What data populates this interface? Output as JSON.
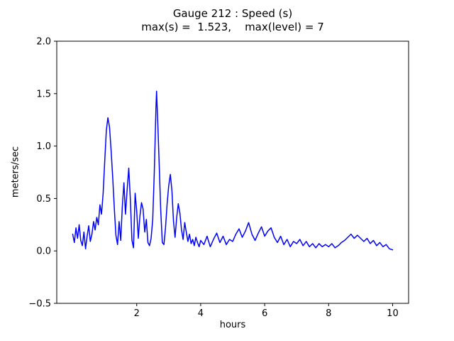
{
  "figure": {
    "background": "#ffffff",
    "axes_color": "#000000"
  },
  "chart_data": {
    "type": "line",
    "title": "Gauge 212 : Speed (s)",
    "subtitle": "max(s) =  1.523,    max(level) = 7",
    "max_s": 1.523,
    "max_level": 7,
    "xlabel": "hours",
    "ylabel": "meters/sec",
    "xlim": [
      -0.5,
      10.5
    ],
    "ylim": [
      -0.5,
      2.0
    ],
    "xticks": [
      2,
      4,
      6,
      8,
      10
    ],
    "xtick_labels": [
      "2",
      "4",
      "6",
      "8",
      "10"
    ],
    "yticks": [
      -0.5,
      0.0,
      0.5,
      1.0,
      1.5,
      2.0
    ],
    "ytick_labels": [
      "−0.5",
      "0.0",
      "0.5",
      "1.0",
      "1.5",
      "2.0"
    ],
    "grid": false,
    "legend": "none",
    "line_color": "#0000ff",
    "series": [
      {
        "name": "s",
        "points": [
          [
            0.0,
            0.16
          ],
          [
            0.05,
            0.08
          ],
          [
            0.1,
            0.22
          ],
          [
            0.15,
            0.12
          ],
          [
            0.2,
            0.25
          ],
          [
            0.25,
            0.1
          ],
          [
            0.3,
            0.05
          ],
          [
            0.35,
            0.18
          ],
          [
            0.4,
            0.02
          ],
          [
            0.45,
            0.14
          ],
          [
            0.5,
            0.24
          ],
          [
            0.55,
            0.09
          ],
          [
            0.6,
            0.16
          ],
          [
            0.65,
            0.28
          ],
          [
            0.7,
            0.2
          ],
          [
            0.75,
            0.32
          ],
          [
            0.8,
            0.25
          ],
          [
            0.85,
            0.44
          ],
          [
            0.9,
            0.35
          ],
          [
            0.95,
            0.55
          ],
          [
            1.0,
            0.85
          ],
          [
            1.05,
            1.15
          ],
          [
            1.1,
            1.27
          ],
          [
            1.15,
            1.18
          ],
          [
            1.2,
            0.95
          ],
          [
            1.25,
            0.7
          ],
          [
            1.3,
            0.4
          ],
          [
            1.35,
            0.15
          ],
          [
            1.4,
            0.06
          ],
          [
            1.45,
            0.28
          ],
          [
            1.5,
            0.1
          ],
          [
            1.55,
            0.42
          ],
          [
            1.6,
            0.65
          ],
          [
            1.65,
            0.35
          ],
          [
            1.7,
            0.58
          ],
          [
            1.75,
            0.79
          ],
          [
            1.8,
            0.5
          ],
          [
            1.85,
            0.1
          ],
          [
            1.9,
            0.03
          ],
          [
            1.95,
            0.55
          ],
          [
            2.0,
            0.38
          ],
          [
            2.05,
            0.12
          ],
          [
            2.1,
            0.33
          ],
          [
            2.15,
            0.46
          ],
          [
            2.2,
            0.4
          ],
          [
            2.25,
            0.18
          ],
          [
            2.3,
            0.3
          ],
          [
            2.35,
            0.08
          ],
          [
            2.4,
            0.05
          ],
          [
            2.45,
            0.12
          ],
          [
            2.5,
            0.3
          ],
          [
            2.55,
            0.75
          ],
          [
            2.6,
            1.35
          ],
          [
            2.62,
            1.523
          ],
          [
            2.65,
            1.3
          ],
          [
            2.7,
            0.85
          ],
          [
            2.75,
            0.4
          ],
          [
            2.8,
            0.08
          ],
          [
            2.85,
            0.06
          ],
          [
            2.9,
            0.22
          ],
          [
            2.95,
            0.45
          ],
          [
            3.0,
            0.62
          ],
          [
            3.05,
            0.73
          ],
          [
            3.1,
            0.58
          ],
          [
            3.15,
            0.28
          ],
          [
            3.2,
            0.13
          ],
          [
            3.25,
            0.32
          ],
          [
            3.3,
            0.45
          ],
          [
            3.35,
            0.36
          ],
          [
            3.4,
            0.2
          ],
          [
            3.45,
            0.11
          ],
          [
            3.5,
            0.27
          ],
          [
            3.55,
            0.18
          ],
          [
            3.6,
            0.09
          ],
          [
            3.65,
            0.16
          ],
          [
            3.7,
            0.07
          ],
          [
            3.75,
            0.11
          ],
          [
            3.8,
            0.05
          ],
          [
            3.85,
            0.13
          ],
          [
            3.9,
            0.08
          ],
          [
            3.95,
            0.04
          ],
          [
            4.0,
            0.1
          ],
          [
            4.1,
            0.06
          ],
          [
            4.2,
            0.14
          ],
          [
            4.3,
            0.04
          ],
          [
            4.4,
            0.11
          ],
          [
            4.5,
            0.17
          ],
          [
            4.6,
            0.08
          ],
          [
            4.7,
            0.14
          ],
          [
            4.8,
            0.06
          ],
          [
            4.9,
            0.11
          ],
          [
            5.0,
            0.09
          ],
          [
            5.1,
            0.16
          ],
          [
            5.2,
            0.21
          ],
          [
            5.3,
            0.13
          ],
          [
            5.4,
            0.19
          ],
          [
            5.5,
            0.27
          ],
          [
            5.6,
            0.16
          ],
          [
            5.7,
            0.1
          ],
          [
            5.8,
            0.17
          ],
          [
            5.9,
            0.23
          ],
          [
            6.0,
            0.14
          ],
          [
            6.1,
            0.19
          ],
          [
            6.2,
            0.22
          ],
          [
            6.3,
            0.13
          ],
          [
            6.4,
            0.08
          ],
          [
            6.5,
            0.14
          ],
          [
            6.6,
            0.06
          ],
          [
            6.7,
            0.11
          ],
          [
            6.8,
            0.04
          ],
          [
            6.9,
            0.09
          ],
          [
            7.0,
            0.07
          ],
          [
            7.1,
            0.11
          ],
          [
            7.2,
            0.05
          ],
          [
            7.3,
            0.09
          ],
          [
            7.4,
            0.04
          ],
          [
            7.5,
            0.07
          ],
          [
            7.6,
            0.03
          ],
          [
            7.7,
            0.07
          ],
          [
            7.8,
            0.04
          ],
          [
            7.9,
            0.06
          ],
          [
            8.0,
            0.04
          ],
          [
            8.1,
            0.07
          ],
          [
            8.2,
            0.03
          ],
          [
            8.3,
            0.05
          ],
          [
            8.4,
            0.08
          ],
          [
            8.5,
            0.1
          ],
          [
            8.6,
            0.13
          ],
          [
            8.7,
            0.16
          ],
          [
            8.8,
            0.12
          ],
          [
            8.9,
            0.15
          ],
          [
            9.0,
            0.12
          ],
          [
            9.1,
            0.09
          ],
          [
            9.2,
            0.12
          ],
          [
            9.3,
            0.07
          ],
          [
            9.4,
            0.1
          ],
          [
            9.5,
            0.05
          ],
          [
            9.6,
            0.08
          ],
          [
            9.7,
            0.04
          ],
          [
            9.8,
            0.06
          ],
          [
            9.9,
            0.02
          ],
          [
            10.0,
            0.01
          ]
        ]
      }
    ]
  }
}
